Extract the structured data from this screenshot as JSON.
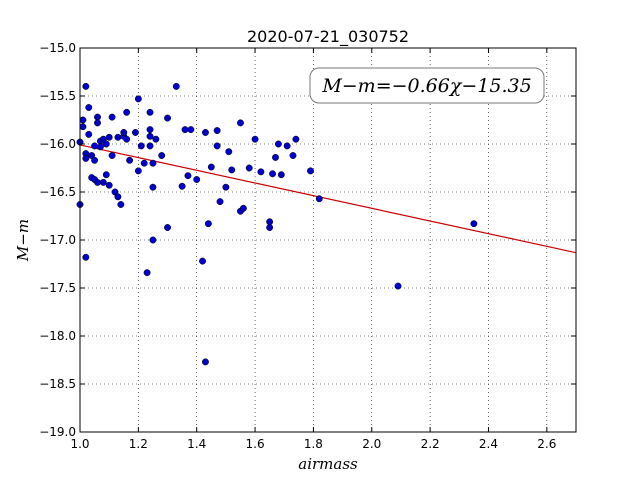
{
  "chart_data": {
    "type": "scatter",
    "title": "2020-07-21_030752",
    "xlabel": "airmass",
    "ylabel": "M−m",
    "xlim": [
      1.0,
      2.7
    ],
    "ylim": [
      -19.0,
      -15.0
    ],
    "x_ticks": [
      "1.0",
      "1.2",
      "1.4",
      "1.6",
      "1.8",
      "2.0",
      "2.2",
      "2.4",
      "2.6"
    ],
    "x_tick_values": [
      1.0,
      1.2,
      1.4,
      1.6,
      1.8,
      2.0,
      2.2,
      2.4,
      2.6
    ],
    "y_ticks": [
      "−15.0",
      "−15.5",
      "−16.0",
      "−16.5",
      "−17.0",
      "−17.5",
      "−18.0",
      "−18.5",
      "−19.0"
    ],
    "y_tick_values": [
      -15.0,
      -15.5,
      -16.0,
      -16.5,
      -17.0,
      -17.5,
      -18.0,
      -18.5,
      -19.0
    ],
    "grid": true,
    "annotation": "M−m=−0.66χ−15.35",
    "fit": {
      "slope": -0.66,
      "intercept": -15.35,
      "color": "#cc0000"
    },
    "marker_color": "#0000cc",
    "series": [
      {
        "points": [
          [
            1.0,
            -15.98
          ],
          [
            1.0,
            -16.63
          ],
          [
            1.01,
            -15.75
          ],
          [
            1.01,
            -15.82
          ],
          [
            1.02,
            -16.1
          ],
          [
            1.02,
            -16.15
          ],
          [
            1.02,
            -15.4
          ],
          [
            1.02,
            -17.18
          ],
          [
            1.03,
            -15.62
          ],
          [
            1.03,
            -15.9
          ],
          [
            1.04,
            -16.12
          ],
          [
            1.04,
            -16.35
          ],
          [
            1.05,
            -16.02
          ],
          [
            1.05,
            -16.17
          ],
          [
            1.05,
            -16.37
          ],
          [
            1.06,
            -15.72
          ],
          [
            1.06,
            -15.78
          ],
          [
            1.06,
            -16.4
          ],
          [
            1.07,
            -15.97
          ],
          [
            1.07,
            -16.03
          ],
          [
            1.08,
            -16.4
          ],
          [
            1.08,
            -15.95
          ],
          [
            1.09,
            -16.0
          ],
          [
            1.09,
            -16.32
          ],
          [
            1.1,
            -15.93
          ],
          [
            1.1,
            -16.43
          ],
          [
            1.11,
            -15.72
          ],
          [
            1.11,
            -16.12
          ],
          [
            1.12,
            -16.5
          ],
          [
            1.13,
            -16.55
          ],
          [
            1.13,
            -15.93
          ],
          [
            1.14,
            -16.63
          ],
          [
            1.15,
            -15.92
          ],
          [
            1.15,
            -15.88
          ],
          [
            1.16,
            -15.67
          ],
          [
            1.16,
            -15.95
          ],
          [
            1.17,
            -16.17
          ],
          [
            1.19,
            -15.88
          ],
          [
            1.2,
            -15.53
          ],
          [
            1.2,
            -16.28
          ],
          [
            1.21,
            -16.02
          ],
          [
            1.22,
            -16.2
          ],
          [
            1.23,
            -17.34
          ],
          [
            1.24,
            -15.85
          ],
          [
            1.24,
            -15.92
          ],
          [
            1.24,
            -15.67
          ],
          [
            1.24,
            -16.02
          ],
          [
            1.25,
            -16.2
          ],
          [
            1.25,
            -16.45
          ],
          [
            1.25,
            -17.0
          ],
          [
            1.26,
            -15.95
          ],
          [
            1.28,
            -16.12
          ],
          [
            1.3,
            -16.87
          ],
          [
            1.3,
            -15.73
          ],
          [
            1.33,
            -15.4
          ],
          [
            1.35,
            -16.44
          ],
          [
            1.36,
            -15.85
          ],
          [
            1.37,
            -16.33
          ],
          [
            1.38,
            -15.85
          ],
          [
            1.4,
            -16.37
          ],
          [
            1.42,
            -17.22
          ],
          [
            1.43,
            -18.27
          ],
          [
            1.43,
            -15.88
          ],
          [
            1.44,
            -16.83
          ],
          [
            1.45,
            -16.24
          ],
          [
            1.47,
            -16.02
          ],
          [
            1.47,
            -15.86
          ],
          [
            1.48,
            -16.6
          ],
          [
            1.5,
            -16.45
          ],
          [
            1.51,
            -16.08
          ],
          [
            1.52,
            -16.27
          ],
          [
            1.55,
            -16.7
          ],
          [
            1.55,
            -15.78
          ],
          [
            1.56,
            -16.67
          ],
          [
            1.58,
            -16.25
          ],
          [
            1.6,
            -15.95
          ],
          [
            1.62,
            -16.29
          ],
          [
            1.65,
            -16.81
          ],
          [
            1.65,
            -16.87
          ],
          [
            1.66,
            -16.31
          ],
          [
            1.67,
            -16.14
          ],
          [
            1.68,
            -16.0
          ],
          [
            1.69,
            -16.32
          ],
          [
            1.71,
            -16.02
          ],
          [
            1.73,
            -16.12
          ],
          [
            1.74,
            -15.95
          ],
          [
            1.79,
            -16.28
          ],
          [
            1.82,
            -16.57
          ],
          [
            2.09,
            -17.48
          ],
          [
            2.35,
            -16.83
          ]
        ]
      }
    ]
  }
}
